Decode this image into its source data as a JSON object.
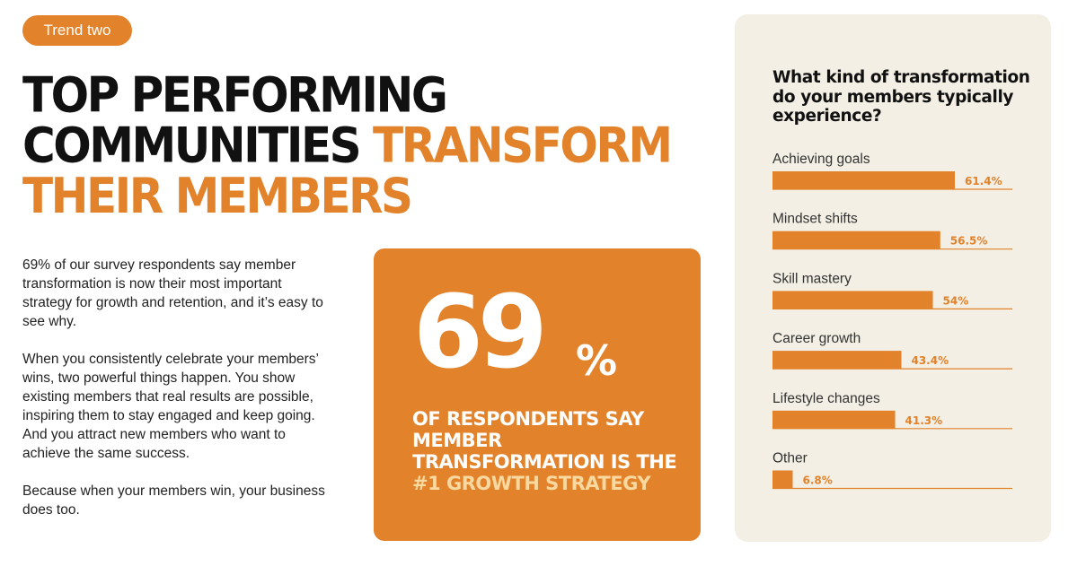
{
  "badge": "Trend two",
  "headline": {
    "line1": "TOP PERFORMING",
    "line2_black": "COMMUNITIES ",
    "line2_accent": "TRANSFORM",
    "line3_accent": "THEIR MEMBERS"
  },
  "body": {
    "p1": "69% of our survey respondents say member transformation is now their most important strategy for growth and retention, and it’s easy to see why.",
    "p2": "When you consistently celebrate your members’ wins, two powerful things happen. You show existing members that real results are possible, inspiring them to stay engaged and keep going. And you attract new members who want to achieve the same success.",
    "p3": "Because when your members win, your business does too."
  },
  "stat": {
    "number": "69",
    "percent": "%",
    "caption_before": "OF RESPONDENTS SAY MEMBER TRANSFORMATION IS THE ",
    "caption_highlight": "#1 GROWTH STRATEGY"
  },
  "colors": {
    "accent": "#e2822b",
    "panel": "#f3efe4",
    "highlight": "#f9d9a0"
  },
  "chart_data": {
    "type": "bar",
    "orientation": "horizontal",
    "title": "What kind of transformation do your members typically experience?",
    "categories": [
      "Achieving goals",
      "Mindset shifts",
      "Skill mastery",
      "Career growth",
      "Lifestyle changes",
      "Other"
    ],
    "values": [
      61.4,
      56.5,
      54,
      43.4,
      41.3,
      6.8
    ],
    "value_labels": [
      "61.4%",
      "56.5%",
      "54%",
      "43.4%",
      "41.3%",
      "6.8%"
    ],
    "xlim": [
      0,
      81
    ],
    "grid": false,
    "legend": "none"
  }
}
